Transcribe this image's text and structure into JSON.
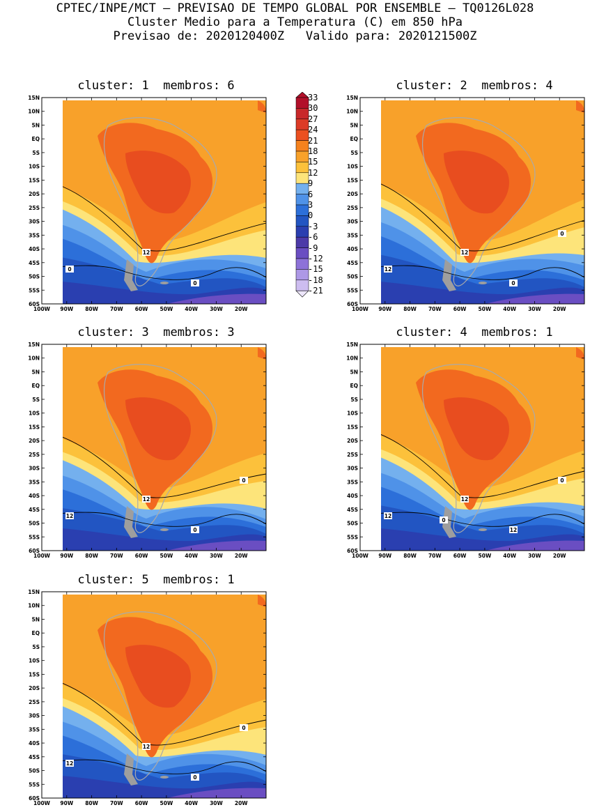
{
  "header": {
    "line1": "CPTEC/INPE/MCT – PREVISAO DE TEMPO GLOBAL POR ENSEMBLE – TQ0126L028",
    "line2": "Cluster Medio para a Temperatura (C) em 850 hPa",
    "line3": "Previsao de: 2020120400Z   Valido para: 2020121500Z"
  },
  "panels": [
    {
      "title": "cluster: 1  membros: 6"
    },
    {
      "title": "cluster: 2  membros: 4"
    },
    {
      "title": "cluster: 3  membros: 3"
    },
    {
      "title": "cluster: 4  membros: 1"
    },
    {
      "title": "cluster: 5  membros: 1"
    }
  ],
  "lat_labels": [
    "15N",
    "10N",
    "5N",
    "EQ",
    "5S",
    "10S",
    "15S",
    "20S",
    "25S",
    "30S",
    "35S",
    "40S",
    "45S",
    "50S",
    "55S",
    "60S"
  ],
  "lon_labels": [
    "100W",
    "90W",
    "80W",
    "70W",
    "60W",
    "50W",
    "40W",
    "30W",
    "20W"
  ],
  "contour_labels": {
    "p1": [
      "12",
      "0",
      "0"
    ],
    "p2": [
      "12",
      "12",
      "0",
      "0"
    ],
    "p3": [
      "12",
      "12",
      "0",
      "0"
    ],
    "p4": [
      "12",
      "12",
      "12",
      "0",
      "0"
    ],
    "p5": [
      "12",
      "12",
      "0",
      "0"
    ]
  },
  "colorbar": {
    "labels": [
      "33",
      "30",
      "27",
      "24",
      "21",
      "18",
      "15",
      "12",
      "9",
      "6",
      "3",
      "0",
      "-3",
      "-6",
      "-9",
      "-12",
      "-15",
      "-18",
      "-21"
    ],
    "colors": [
      "#b2102a",
      "#c8282a",
      "#dc3b26",
      "#eb5020",
      "#f5821e",
      "#f8a12a",
      "#fcc13b",
      "#fde47a",
      "#74b0ee",
      "#4f92e8",
      "#2c6fd9",
      "#2255c2",
      "#2a3fb0",
      "#4c3aa8",
      "#6a4ec2",
      "#8d72d8",
      "#ad98e6",
      "#cdbdf0"
    ]
  },
  "colors": {
    "c24": "#e5461f",
    "c21": "#f2691f",
    "c18": "#f8a12a",
    "c15": "#fcc13b",
    "c12": "#fde47a",
    "c9": "#74b0ee",
    "c6": "#4f92e8",
    "c3": "#2c6fd9",
    "c0": "#2255c2",
    "cm3": "#2a3fb0",
    "cm6": "#6a4ec2",
    "land": "#9e9e9e"
  }
}
